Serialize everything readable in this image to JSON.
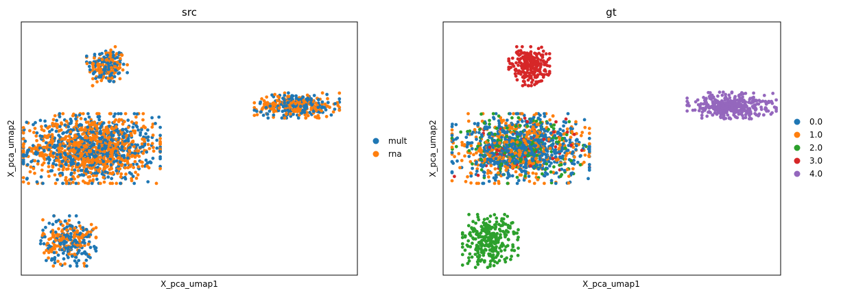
{
  "chart_data": [
    {
      "type": "scatter",
      "title": "src",
      "xlabel": "X_pca_umap1",
      "ylabel": "X_pca_umap2",
      "xticks": [],
      "yticks": [],
      "grid": false,
      "legend_position": "right",
      "xlim": [
        0,
        10
      ],
      "ylim": [
        0,
        10
      ],
      "series": [
        {
          "name": "mult",
          "color": "#1f77b4"
        },
        {
          "name": "rna",
          "color": "#ff7f0e"
        }
      ],
      "clusters": [
        {
          "name": "top-cluster",
          "center": [
            2.55,
            8.25
          ],
          "spread": [
            0.55,
            0.7
          ],
          "points": [
            {
              "series": "mult",
              "count": 110
            },
            {
              "series": "rna",
              "count": 120
            }
          ]
        },
        {
          "name": "center-cluster",
          "center": [
            2.1,
            5.0
          ],
          "spread": [
            1.85,
            1.25
          ],
          "points": [
            {
              "series": "mult",
              "count": 620
            },
            {
              "series": "rna",
              "count": 820
            }
          ]
        },
        {
          "name": "bottom-cluster",
          "center": [
            1.4,
            1.35
          ],
          "spread": [
            0.75,
            0.9
          ],
          "points": [
            {
              "series": "mult",
              "count": 150
            },
            {
              "series": "rna",
              "count": 140
            }
          ]
        },
        {
          "name": "right-cluster",
          "center": [
            8.2,
            6.7
          ],
          "spread": [
            1.15,
            0.45
          ],
          "points": [
            {
              "series": "mult",
              "count": 180
            },
            {
              "series": "rna",
              "count": 190
            }
          ]
        }
      ]
    },
    {
      "type": "scatter",
      "title": "gt",
      "xlabel": "X_pca_umap1",
      "ylabel": "X_pca_umap2",
      "xticks": [],
      "yticks": [],
      "grid": false,
      "legend_position": "right",
      "xlim": [
        0,
        10
      ],
      "ylim": [
        0,
        10
      ],
      "series": [
        {
          "name": "0.0",
          "color": "#1f77b4"
        },
        {
          "name": "1.0",
          "color": "#ff7f0e"
        },
        {
          "name": "2.0",
          "color": "#2ca02c"
        },
        {
          "name": "3.0",
          "color": "#d62728"
        },
        {
          "name": "4.0",
          "color": "#9467bd"
        }
      ],
      "clusters": [
        {
          "name": "top-cluster",
          "center": [
            2.55,
            8.25
          ],
          "spread": [
            0.55,
            0.7
          ],
          "points": [
            {
              "series": "3.0",
              "count": 230
            }
          ]
        },
        {
          "name": "center-cluster",
          "center": [
            2.3,
            5.0
          ],
          "spread": [
            1.85,
            1.25
          ],
          "points": [
            {
              "series": "0.0",
              "count": 700
            },
            {
              "series": "1.0",
              "count": 420
            },
            {
              "series": "2.0",
              "count": 200
            },
            {
              "series": "3.0",
              "count": 60
            }
          ]
        },
        {
          "name": "bottom-cluster",
          "center": [
            1.4,
            1.35
          ],
          "spread": [
            0.75,
            0.95
          ],
          "points": [
            {
              "series": "2.0",
              "count": 290
            }
          ]
        },
        {
          "name": "right-cluster",
          "center": [
            8.55,
            6.7
          ],
          "spread": [
            1.2,
            0.48
          ],
          "points": [
            {
              "series": "4.0",
              "count": 370
            }
          ]
        }
      ]
    }
  ]
}
